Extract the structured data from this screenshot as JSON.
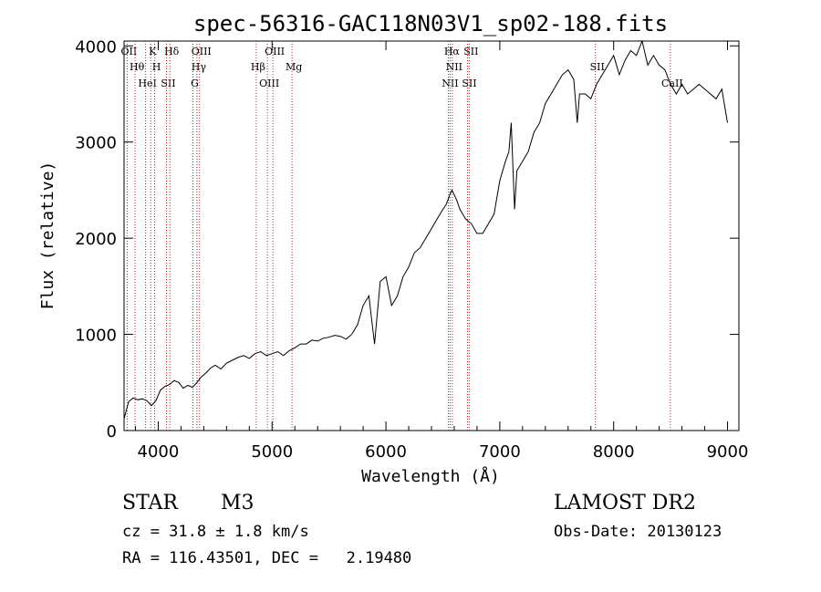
{
  "chart_data": {
    "type": "line",
    "title": "spec-56316-GAC118N03V1_sp02-188.fits",
    "xlabel": "Wavelength (Å)",
    "ylabel": "Flux (relative)",
    "xlim": [
      3700,
      9100
    ],
    "ylim": [
      0,
      4050
    ],
    "x_ticks": [
      4000,
      5000,
      6000,
      7000,
      8000,
      9000
    ],
    "y_ticks": [
      0,
      1000,
      2000,
      3000,
      4000
    ],
    "grid": false,
    "line_color": "#000000",
    "marker_color": "#b22222",
    "series": [
      {
        "x": [
          3700,
          3740,
          3780,
          3820,
          3860,
          3900,
          3940,
          3980,
          4020,
          4060,
          4100,
          4140,
          4180,
          4220,
          4260,
          4300,
          4340,
          4380,
          4420,
          4460,
          4500,
          4550,
          4600,
          4650,
          4700,
          4750,
          4800,
          4850,
          4900,
          4950,
          5000,
          5050,
          5100,
          5150,
          5200,
          5250,
          5300,
          5350,
          5400,
          5450,
          5500,
          5550,
          5600,
          5650,
          5700,
          5750,
          5800,
          5850,
          5880,
          5900,
          5950,
          6000,
          6050,
          6100,
          6150,
          6200,
          6250,
          6300,
          6350,
          6400,
          6450,
          6500,
          6530,
          6560,
          6580,
          6600,
          6620,
          6650,
          6700,
          6750,
          6800,
          6850,
          6900,
          6950,
          7000,
          7050,
          7080,
          7100,
          7130,
          7150,
          7200,
          7250,
          7300,
          7350,
          7400,
          7450,
          7500,
          7550,
          7600,
          7650,
          7680,
          7700,
          7750,
          7800,
          7850,
          7900,
          7950,
          8000,
          8050,
          8100,
          8150,
          8200,
          8250,
          8300,
          8350,
          8400,
          8450,
          8500,
          8550,
          8600,
          8650,
          8700,
          8750,
          8800,
          8850,
          8900,
          8950,
          9000
        ],
        "y": [
          120,
          300,
          340,
          320,
          330,
          310,
          260,
          310,
          420,
          460,
          480,
          520,
          500,
          440,
          470,
          450,
          500,
          560,
          600,
          650,
          680,
          640,
          700,
          730,
          760,
          780,
          750,
          800,
          820,
          780,
          800,
          820,
          780,
          830,
          860,
          900,
          900,
          940,
          930,
          960,
          970,
          990,
          980,
          950,
          1000,
          1100,
          1300,
          1400,
          1100,
          900,
          1550,
          1600,
          1300,
          1400,
          1600,
          1700,
          1850,
          1900,
          2000,
          2100,
          2200,
          2300,
          2350,
          2450,
          2500,
          2450,
          2400,
          2300,
          2200,
          2150,
          2050,
          2050,
          2150,
          2250,
          2600,
          2800,
          2900,
          3200,
          2300,
          2700,
          2800,
          2900,
          3100,
          3200,
          3400,
          3500,
          3600,
          3700,
          3750,
          3650,
          3200,
          3500,
          3500,
          3450,
          3600,
          3700,
          3800,
          3900,
          3700,
          3850,
          3950,
          3900,
          4050,
          3800,
          3900,
          3800,
          3750,
          3600,
          3500,
          3600,
          3500,
          3550,
          3600,
          3550,
          3500,
          3450,
          3550,
          3200
        ]
      }
    ],
    "line_markers": [
      {
        "label": "OII",
        "x": 3727
      },
      {
        "label": "Hθ",
        "x": 3797
      },
      {
        "label": "HeI",
        "x": 3889
      },
      {
        "label": "K",
        "x": 3934
      },
      {
        "label": "H",
        "x": 3969
      },
      {
        "label": "SII",
        "x": 4072
      },
      {
        "label": "Hδ",
        "x": 4102
      },
      {
        "label": "Hγ",
        "x": 4340
      },
      {
        "label": "G",
        "x": 4305
      },
      {
        "label": "OIII",
        "x": 4363
      },
      {
        "label": "Hβ",
        "x": 4861
      },
      {
        "label": "OIII",
        "x": 4959
      },
      {
        "label": "OIII",
        "x": 5007
      },
      {
        "label": "Mg",
        "x": 5175
      },
      {
        "label": "NII",
        "x": 6548
      },
      {
        "label": "Hα",
        "x": 6563
      },
      {
        "label": "NII",
        "x": 6583
      },
      {
        "label": "SII",
        "x": 6716
      },
      {
        "label": "SII",
        "x": 6731
      },
      {
        "label": "SII",
        "x": 7840
      },
      {
        "label": "CaII",
        "x": 8498
      }
    ]
  },
  "info": {
    "class_label": "STAR",
    "subclass": "M3",
    "survey": "LAMOST DR2",
    "cz": "cz = 31.8 ± 1.8 km/s",
    "obs_date": "Obs-Date: 20130123",
    "coords": "RA = 116.43501, DEC =   2.19480"
  }
}
